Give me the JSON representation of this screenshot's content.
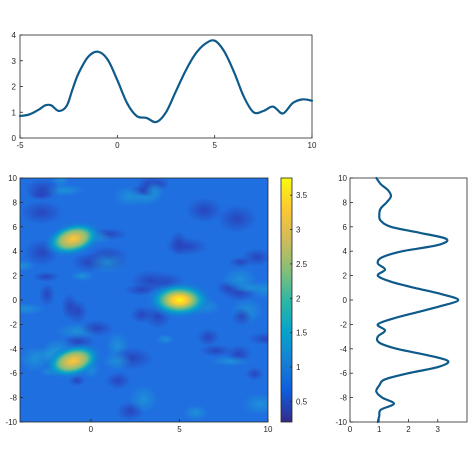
{
  "chart_data": [
    {
      "type": "line",
      "xlim": [
        -5,
        10
      ],
      "ylim": [
        0,
        4
      ],
      "xticks": [
        -5,
        0,
        5,
        10
      ],
      "yticks": [
        0,
        1,
        2,
        3,
        4
      ],
      "grid": false,
      "color": "#0e5a8a",
      "series": [
        {
          "x": [
            -5,
            -4.5,
            -4,
            -3.7,
            -3.4,
            -3,
            -2.6,
            -2.3,
            -2,
            -1.5,
            -1,
            -0.5,
            0,
            0.5,
            1,
            1.5,
            2,
            2.5,
            3,
            3.5,
            4,
            4.5,
            5,
            5.5,
            6,
            6.5,
            7,
            7.5,
            8,
            8.5,
            9,
            9.5,
            10
          ],
          "y": [
            0.85,
            0.92,
            1.12,
            1.27,
            1.27,
            1.05,
            1.25,
            1.9,
            2.5,
            3.15,
            3.35,
            3.05,
            2.25,
            1.35,
            0.85,
            0.78,
            0.62,
            1.0,
            1.8,
            2.6,
            3.25,
            3.65,
            3.78,
            3.35,
            2.55,
            1.6,
            1.0,
            1.05,
            1.22,
            0.95,
            1.35,
            1.5,
            1.45
          ]
        }
      ]
    },
    {
      "type": "heatmap",
      "xlim": [
        -4,
        10
      ],
      "ylim": [
        -10,
        10
      ],
      "xticks": [
        0,
        5,
        10
      ],
      "yticks": [
        -10,
        -8,
        -6,
        -4,
        -2,
        0,
        2,
        4,
        6,
        8,
        10
      ],
      "colormap": "parula",
      "clim": [
        0.2,
        3.75
      ],
      "colorbar_ticks": [
        0.5,
        1,
        1.5,
        2,
        2.5,
        3,
        3.5
      ],
      "background_level": 0.95,
      "peaks": [
        {
          "x": -1,
          "y": 5,
          "value": 3.05
        },
        {
          "x": 5,
          "y": 0,
          "value": 3.75
        },
        {
          "x": -1,
          "y": -5,
          "value": 3.05
        }
      ]
    },
    {
      "type": "line",
      "orientation": "vertical",
      "xlim": [
        0,
        4
      ],
      "ylim": [
        -10,
        10
      ],
      "xticks": [
        0,
        1,
        2,
        3
      ],
      "yticks": [
        -10,
        -8,
        -6,
        -4,
        -2,
        0,
        2,
        4,
        6,
        8,
        10
      ],
      "grid": false,
      "color": "#0e5a8a",
      "series": [
        {
          "y": [
            -10,
            -9.5,
            -9,
            -8.5,
            -8,
            -7.5,
            -7,
            -6.5,
            -6,
            -5.5,
            -5,
            -4.5,
            -4,
            -3.5,
            -3,
            -2.5,
            -2,
            -1.5,
            -1,
            -0.5,
            0,
            0.5,
            1,
            1.5,
            2,
            2.5,
            3,
            3.5,
            4,
            4.5,
            5,
            5.5,
            6,
            6.5,
            7,
            7.5,
            8,
            8.5,
            9,
            9.5,
            10
          ],
          "x": [
            0.95,
            1.0,
            1.05,
            1.5,
            1.1,
            0.9,
            1.0,
            1.2,
            2.0,
            3.0,
            3.35,
            2.6,
            1.6,
            1.0,
            0.95,
            1.2,
            0.95,
            1.5,
            2.3,
            3.1,
            3.7,
            3.1,
            2.2,
            1.4,
            0.95,
            1.2,
            0.95,
            1.1,
            1.8,
            3.0,
            3.3,
            2.4,
            1.4,
            1.05,
            1.0,
            1.05,
            1.25,
            1.4,
            1.3,
            1.05,
            0.9
          ]
        }
      ]
    }
  ]
}
